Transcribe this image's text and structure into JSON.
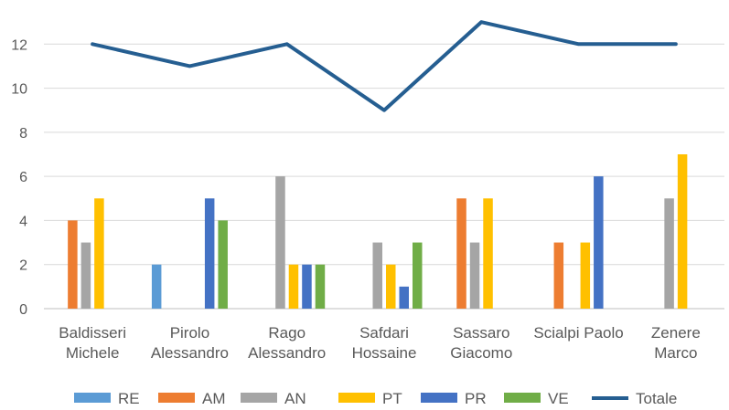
{
  "chart_data": {
    "type": "bar",
    "title": "",
    "xlabel": "",
    "ylabel": "",
    "ylim": [
      0,
      14
    ],
    "yticks": [
      0,
      2,
      4,
      6,
      8,
      10,
      12
    ],
    "grid": true,
    "legend_position": "bottom",
    "categories": [
      [
        "Baldisseri",
        "Michele"
      ],
      [
        "Pirolo",
        "Alessandro"
      ],
      [
        "Rago",
        "Alessandro"
      ],
      [
        "Safdari",
        "Hossaine"
      ],
      [
        "Sassaro",
        "Giacomo"
      ],
      [
        "Scialpi Paolo"
      ],
      [
        "Zenere",
        "Marco"
      ]
    ],
    "series": [
      {
        "name": "RE",
        "type": "bar",
        "color": "#5B9BD5",
        "values": [
          0,
          2,
          0,
          0,
          0,
          0,
          0
        ]
      },
      {
        "name": "AM",
        "type": "bar",
        "color": "#ED7D31",
        "values": [
          4,
          0,
          0,
          0,
          5,
          3,
          0
        ]
      },
      {
        "name": "AN",
        "type": "bar",
        "color": "#A5A5A5",
        "values": [
          3,
          0,
          6,
          3,
          3,
          0,
          5
        ]
      },
      {
        "name": "PT",
        "type": "bar",
        "color": "#FFC000",
        "values": [
          5,
          0,
          2,
          2,
          5,
          3,
          7
        ]
      },
      {
        "name": "PR",
        "type": "bar",
        "color": "#4472C4",
        "values": [
          0,
          5,
          2,
          1,
          0,
          6,
          0
        ]
      },
      {
        "name": "VE",
        "type": "bar",
        "color": "#70AD47",
        "values": [
          0,
          4,
          2,
          3,
          0,
          0,
          0
        ]
      },
      {
        "name": "Totale",
        "type": "line",
        "color": "#255E91",
        "values": [
          12,
          11,
          12,
          9,
          13,
          12,
          12
        ]
      }
    ]
  }
}
